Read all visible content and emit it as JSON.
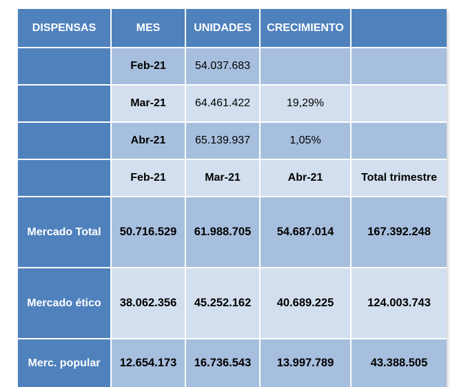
{
  "header": [
    "DISPENSAS",
    "MES",
    "UNIDADES",
    "CRECIMIENTO",
    ""
  ],
  "monthly_rows": [
    {
      "mes": "Feb-21",
      "unidades": "54.037.683",
      "crecimiento": ""
    },
    {
      "mes": "Mar-21",
      "unidades": "64.461.422",
      "crecimiento": "19,29%"
    },
    {
      "mes": "Abr-21",
      "unidades": "65.139.937",
      "crecimiento": "1,05%"
    }
  ],
  "summary_header": [
    "",
    "Feb-21",
    "Mar-21",
    "Abr-21",
    "Total trimestre"
  ],
  "summary_rows": [
    {
      "label": "Mercado Total",
      "values": [
        "50.716.529",
        "61.988.705",
        "54.687.014",
        "167.392.248"
      ]
    },
    {
      "label": "Mercado ético",
      "values": [
        "38.062.356",
        "45.252.162",
        "40.689.225",
        "124.003.743"
      ]
    },
    {
      "label": "Merc. popular",
      "values": [
        "12.654.173",
        "16.736.543",
        "13.997.789",
        "43.388.505"
      ]
    }
  ],
  "colors": {
    "header": "#4f81bd",
    "band_dark": "#a7bfde",
    "band_light": "#d3dfee"
  }
}
